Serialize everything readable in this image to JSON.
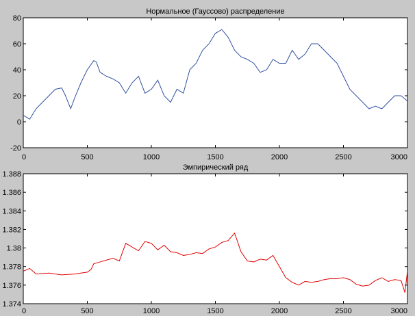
{
  "chart_data": [
    {
      "type": "line",
      "title": "Нормальное (Гауссово) распределение",
      "xlabel": "",
      "ylabel": "",
      "xlim": [
        0,
        3000
      ],
      "ylim": [
        -20,
        80
      ],
      "x_ticks": [
        0,
        500,
        1000,
        1500,
        2000,
        2500,
        3000
      ],
      "y_ticks": [
        -20,
        0,
        20,
        40,
        60,
        80
      ],
      "x_tick_labels": [
        "0",
        "500",
        "1000",
        "1500",
        "2000",
        "2500",
        "3000"
      ],
      "y_tick_labels": [
        "-20",
        "0",
        "20",
        "40",
        "60",
        "80"
      ],
      "grid": false,
      "series": [
        {
          "color": "#2f4f9f",
          "x": [
            0,
            50,
            100,
            150,
            200,
            250,
            300,
            330,
            370,
            400,
            450,
            500,
            550,
            570,
            600,
            650,
            700,
            750,
            800,
            850,
            900,
            950,
            1000,
            1050,
            1100,
            1150,
            1200,
            1250,
            1300,
            1350,
            1400,
            1450,
            1500,
            1550,
            1600,
            1650,
            1700,
            1750,
            1800,
            1850,
            1900,
            1950,
            2000,
            2050,
            2100,
            2150,
            2200,
            2250,
            2300,
            2350,
            2400,
            2450,
            2500,
            2550,
            2600,
            2650,
            2700,
            2750,
            2800,
            2850,
            2900,
            2950,
            3000
          ],
          "y": [
            5,
            2,
            10,
            15,
            20,
            25,
            26,
            20,
            10,
            18,
            30,
            40,
            47,
            46,
            38,
            35,
            33,
            30,
            22,
            30,
            35,
            22,
            25,
            32,
            20,
            15,
            25,
            22,
            40,
            45,
            55,
            60,
            68,
            71,
            65,
            55,
            50,
            48,
            45,
            38,
            40,
            48,
            45,
            45,
            55,
            48,
            52,
            60,
            60,
            55,
            50,
            45,
            35,
            25,
            20,
            15,
            10,
            12,
            10,
            15,
            20,
            20,
            16
          ]
        }
      ]
    },
    {
      "type": "line",
      "title": "Эмпирический ряд",
      "xlabel": "",
      "ylabel": "",
      "xlim": [
        0,
        3000
      ],
      "ylim": [
        1.374,
        1.388
      ],
      "x_ticks": [
        0,
        500,
        1000,
        1500,
        2000,
        2500,
        3000
      ],
      "y_ticks": [
        1.374,
        1.376,
        1.378,
        1.38,
        1.382,
        1.384,
        1.386,
        1.388
      ],
      "x_tick_labels": [
        "0",
        "500",
        "1000",
        "1500",
        "2000",
        "2500",
        "3000"
      ],
      "y_tick_labels": [
        "1.374",
        "1.376",
        "1.378",
        "1.38",
        "1.382",
        "1.384",
        "1.386",
        "1.388"
      ],
      "grid": false,
      "series": [
        {
          "color": "#e00000",
          "x": [
            0,
            50,
            100,
            200,
            300,
            400,
            500,
            530,
            550,
            600,
            650,
            700,
            750,
            800,
            850,
            900,
            950,
            1000,
            1050,
            1100,
            1150,
            1200,
            1250,
            1300,
            1350,
            1400,
            1450,
            1500,
            1550,
            1600,
            1650,
            1700,
            1750,
            1800,
            1850,
            1900,
            1950,
            2000,
            2050,
            2100,
            2150,
            2200,
            2250,
            2300,
            2350,
            2400,
            2450,
            2500,
            2550,
            2600,
            2650,
            2700,
            2750,
            2800,
            2850,
            2900,
            2950,
            2980,
            3000
          ],
          "y": [
            1.3775,
            1.3778,
            1.3772,
            1.3773,
            1.3771,
            1.3772,
            1.3774,
            1.3777,
            1.3783,
            1.3785,
            1.3787,
            1.3789,
            1.3786,
            1.3805,
            1.3801,
            1.3797,
            1.3807,
            1.3805,
            1.3798,
            1.3803,
            1.3796,
            1.3795,
            1.3792,
            1.3793,
            1.3795,
            1.3794,
            1.3799,
            1.3801,
            1.3806,
            1.3808,
            1.3816,
            1.3796,
            1.3786,
            1.3785,
            1.3788,
            1.3787,
            1.3792,
            1.378,
            1.3768,
            1.3763,
            1.376,
            1.3764,
            1.3763,
            1.3764,
            1.3766,
            1.3767,
            1.3767,
            1.3768,
            1.3766,
            1.3761,
            1.3759,
            1.376,
            1.3765,
            1.3768,
            1.3764,
            1.3766,
            1.3765,
            1.3752,
            1.3775
          ]
        }
      ]
    }
  ]
}
